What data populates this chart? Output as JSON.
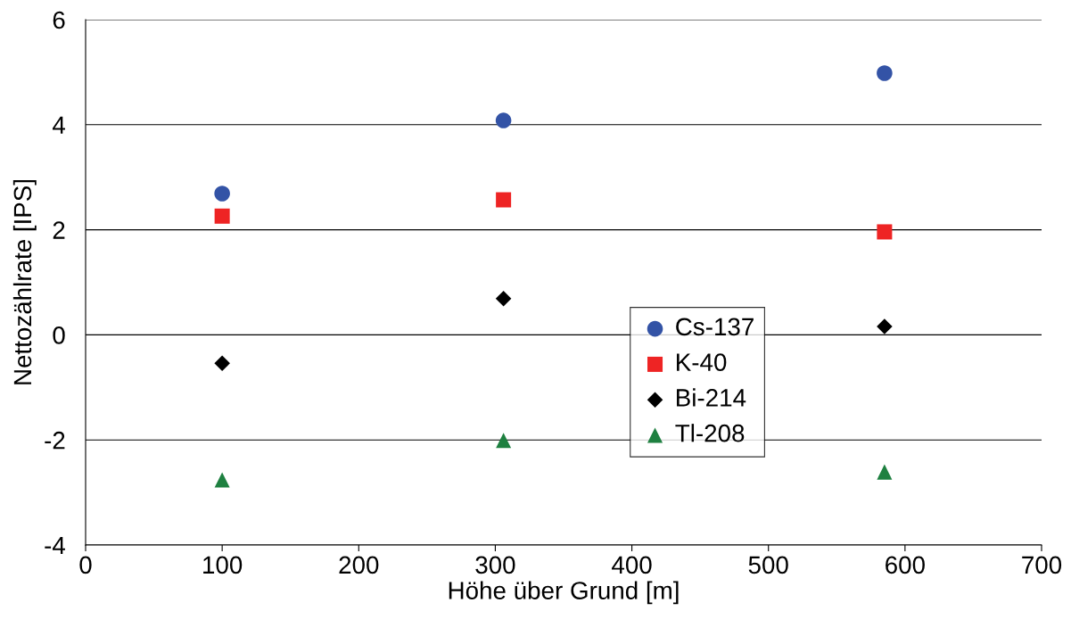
{
  "chart_data": {
    "type": "scatter",
    "xlabel": "Höhe über Grund [m]",
    "ylabel": "Nettozählrate [IPS]",
    "x": [
      100,
      306,
      585
    ],
    "series": [
      {
        "name": "Cs-137",
        "color": "#3353a6",
        "marker": "circle",
        "values": [
          2.69,
          4.08,
          4.98
        ]
      },
      {
        "name": "K-40",
        "color": "#ee2424",
        "marker": "square",
        "values": [
          2.26,
          2.57,
          1.96
        ]
      },
      {
        "name": "Bi-214",
        "color": "#000000",
        "marker": "diamond",
        "values": [
          -0.54,
          0.69,
          0.16
        ]
      },
      {
        "name": "Tl-208",
        "color": "#1e8040",
        "marker": "triangle",
        "values": [
          -2.76,
          -2.01,
          -2.61
        ]
      }
    ],
    "xlim": [
      0,
      700
    ],
    "xticks": [
      0,
      100,
      200,
      300,
      400,
      500,
      600,
      700
    ],
    "ylim": [
      -4,
      6
    ],
    "yticks": [
      -4,
      -2,
      0,
      2,
      4,
      6
    ],
    "grid": "y",
    "legend": "center"
  }
}
